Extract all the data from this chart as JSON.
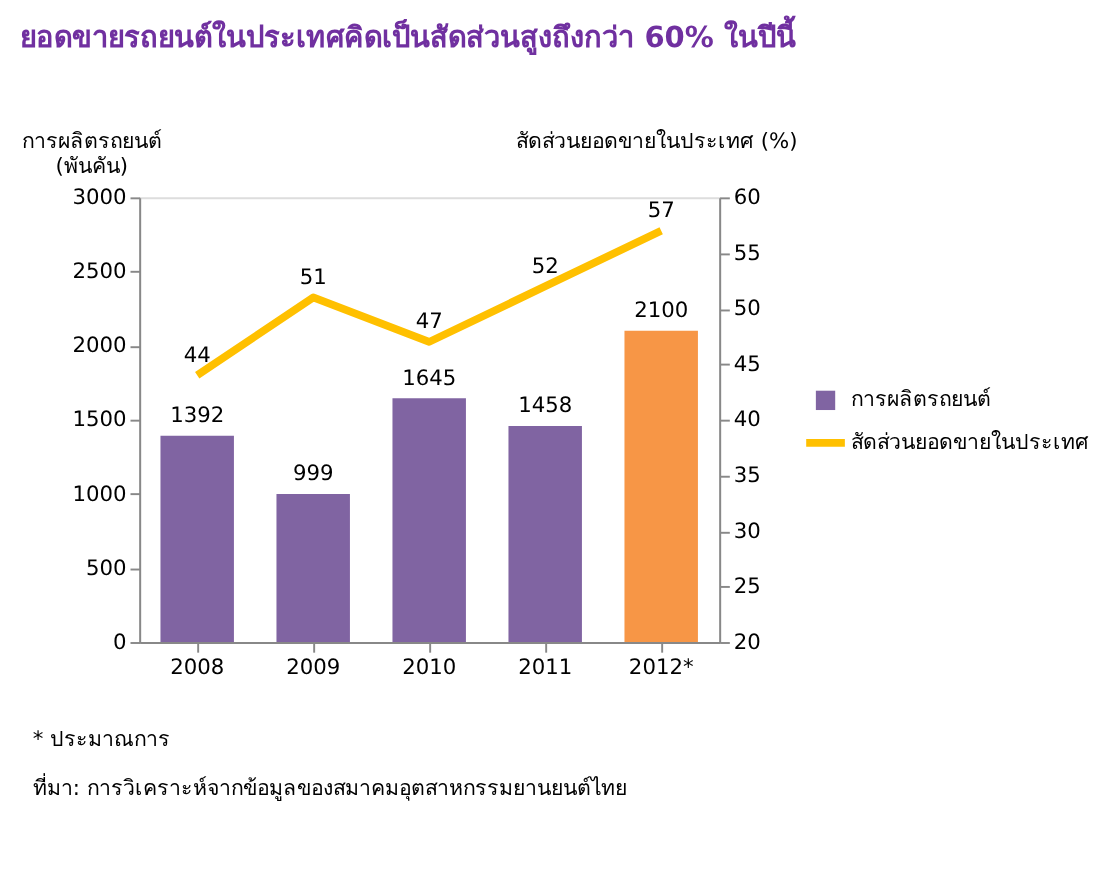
{
  "chart_data": {
    "type": "bar",
    "title": "ยอดขายรถยนต์ในประเทศคิดเป็นสัดส่วนสูงถึงกว่า 60% ในปีนี้",
    "ylabel": "การผลิตรถยนต์\n(พันคัน)",
    "y2label": "สัดส่วนยอดขายในประเทศ (%)",
    "categories": [
      "2008",
      "2009",
      "2010",
      "2011",
      "2012*"
    ],
    "series": [
      {
        "name": "การผลิตรถยนต์",
        "color": "#8064a2",
        "colors": [
          "#8064a2",
          "#8064a2",
          "#8064a2",
          "#8064a2",
          "#f79646"
        ],
        "values": [
          1392,
          999,
          1645,
          1458,
          2100
        ]
      },
      {
        "name": "สัดส่วนยอดขายในประเทศ",
        "type": "line",
        "axis": "y2",
        "color": "#ffc000",
        "values": [
          44,
          51,
          47,
          52,
          57
        ]
      }
    ],
    "ylim": [
      0,
      3000
    ],
    "yticks": [
      0,
      500,
      1000,
      1500,
      2000,
      2500,
      3000
    ],
    "y2lim": [
      20,
      60
    ],
    "y2ticks": [
      20,
      25,
      30,
      35,
      40,
      45,
      50,
      55,
      60
    ],
    "data_labels": true,
    "legend": "right",
    "grid": false,
    "marker": "none",
    "annotations": [
      "* ประมาณการ",
      "ที่มา: การวิเคราะห์จากข้อมูลของสมาคมอุตสาหกรรมยานยนต์ไทย"
    ]
  }
}
